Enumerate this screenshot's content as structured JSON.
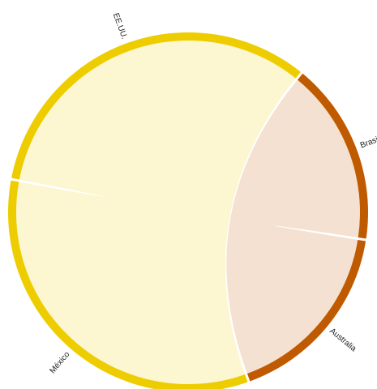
{
  "chart_data": {
    "type": "chord",
    "groups": [
      {
        "name": "EE.UU.",
        "color": "#eecd00",
        "chunks": [
          16.5,
          16.5
        ]
      },
      {
        "name": "Brasil",
        "color": "#c05a00",
        "chunks": [
          16.5
        ]
      },
      {
        "name": "Australia",
        "color": "#c05a00",
        "chunks": [
          17
        ]
      },
      {
        "name": "México",
        "color": "#eecd00",
        "chunks": [
          17,
          16.5
        ]
      }
    ],
    "ribbons": [
      [
        0,
        1,
        3,
        0
      ],
      [
        0,
        0,
        3,
        1
      ],
      [
        1,
        0,
        2,
        0
      ]
    ]
  }
}
